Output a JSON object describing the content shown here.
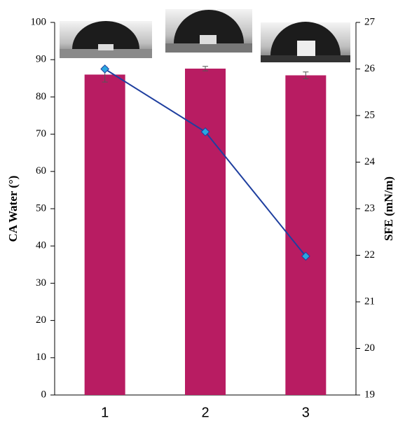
{
  "chart_data": {
    "type": "bar",
    "categories": [
      "1",
      "2",
      "3"
    ],
    "ylabel": "CA Water (°)",
    "y2label": "SFE (mN/m)",
    "ylim": [
      0,
      100
    ],
    "yticks": [
      0,
      10,
      20,
      30,
      40,
      50,
      60,
      70,
      80,
      90,
      100
    ],
    "y2lim": [
      19,
      27
    ],
    "y2ticks": [
      19,
      20,
      21,
      22,
      23,
      24,
      25,
      26,
      27
    ],
    "series": [
      {
        "type": "bar",
        "color": "#b81c62",
        "values": [
          86,
          87.6,
          85.8
        ],
        "errors": [
          2,
          0.6,
          0.9
        ]
      },
      {
        "type": "line",
        "axis": "y2",
        "color": "#1f3f9f",
        "marker_color": "#2aa6e0",
        "values": [
          26.0,
          24.65,
          21.98
        ]
      }
    ]
  }
}
